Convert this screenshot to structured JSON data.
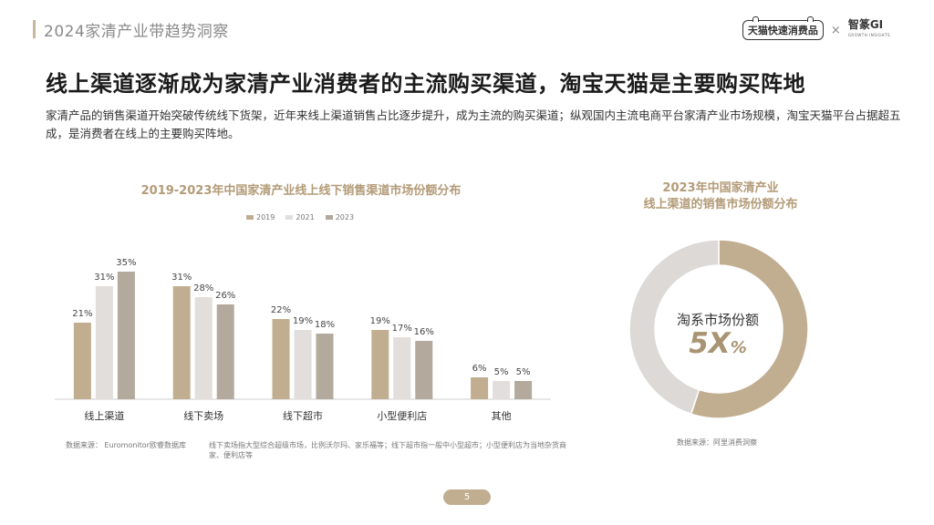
{
  "header": {
    "title": "2024家清产业带趋势洞察",
    "brand_left": "天猫快速消费品",
    "brand_sep": "×",
    "brand_right": "智篆GI",
    "brand_right_sub": "GROWTH INSIGHTS"
  },
  "main": {
    "title": "线上渠道逐渐成为家清产业消费者的主流购买渠道，淘宝天猫是主要购买阵地",
    "description": "家清产品的销售渠道开始突破传统线下货架，近年来线上渠道销售占比逐步提升，成为主流的购买渠道；纵观国内主流电商平台家清产业市场规模，淘宝天猫平台占据超五成，是消费者在线上的主要购买阵地。"
  },
  "bar_chart": {
    "note_source": "数据来源： Euromonitor欧睿数据库",
    "note_def": "线下卖场指大型综合超级市场，比例沃尔玛、家乐福等；线下超市指一般中小型超市；小型便利店为当地杂货商家、便利店等"
  },
  "donut": {
    "center_label": "淘系市场份额",
    "center_value": "5X",
    "center_unit": "%",
    "note_source": "数据来源：阿里消费洞察"
  },
  "page": {
    "number": "5"
  },
  "colors": {
    "s2019": "#c1ae90",
    "s2021": "#e2dedb",
    "s2023": "#b3a99c",
    "donut_main": "#c1ae90",
    "donut_rest": "#dcd9d6"
  },
  "chart_data": [
    {
      "type": "bar",
      "title": "2019-2023年中国家清产业线上线下销售渠道市场份额分布",
      "categories": [
        "线上渠道",
        "线下卖场",
        "线下超市",
        "小型便利店",
        "其他"
      ],
      "series": [
        {
          "name": "2019",
          "values": [
            21,
            31,
            22,
            19,
            6
          ],
          "labels": [
            "21%",
            "31%",
            "22%",
            "19%",
            "6%"
          ]
        },
        {
          "name": "2021",
          "values": [
            31,
            28,
            19,
            17,
            5
          ],
          "labels": [
            "31%",
            "28%",
            "19%",
            "17%",
            "5%"
          ]
        },
        {
          "name": "2023",
          "values": [
            35,
            26,
            18,
            16,
            5
          ],
          "labels": [
            "35%",
            "26%",
            "18%",
            "16%",
            "5%"
          ]
        }
      ],
      "ylim": [
        0,
        40
      ],
      "legend": "top-center",
      "grid": false
    },
    {
      "type": "pie",
      "title": "2023年中国家清产业 线上渠道的销售市场份额分布",
      "title_lines": [
        "2023年中国家清产业",
        "线上渠道的销售市场份额分布"
      ],
      "values": [
        55,
        45
      ],
      "donut": true
    }
  ]
}
